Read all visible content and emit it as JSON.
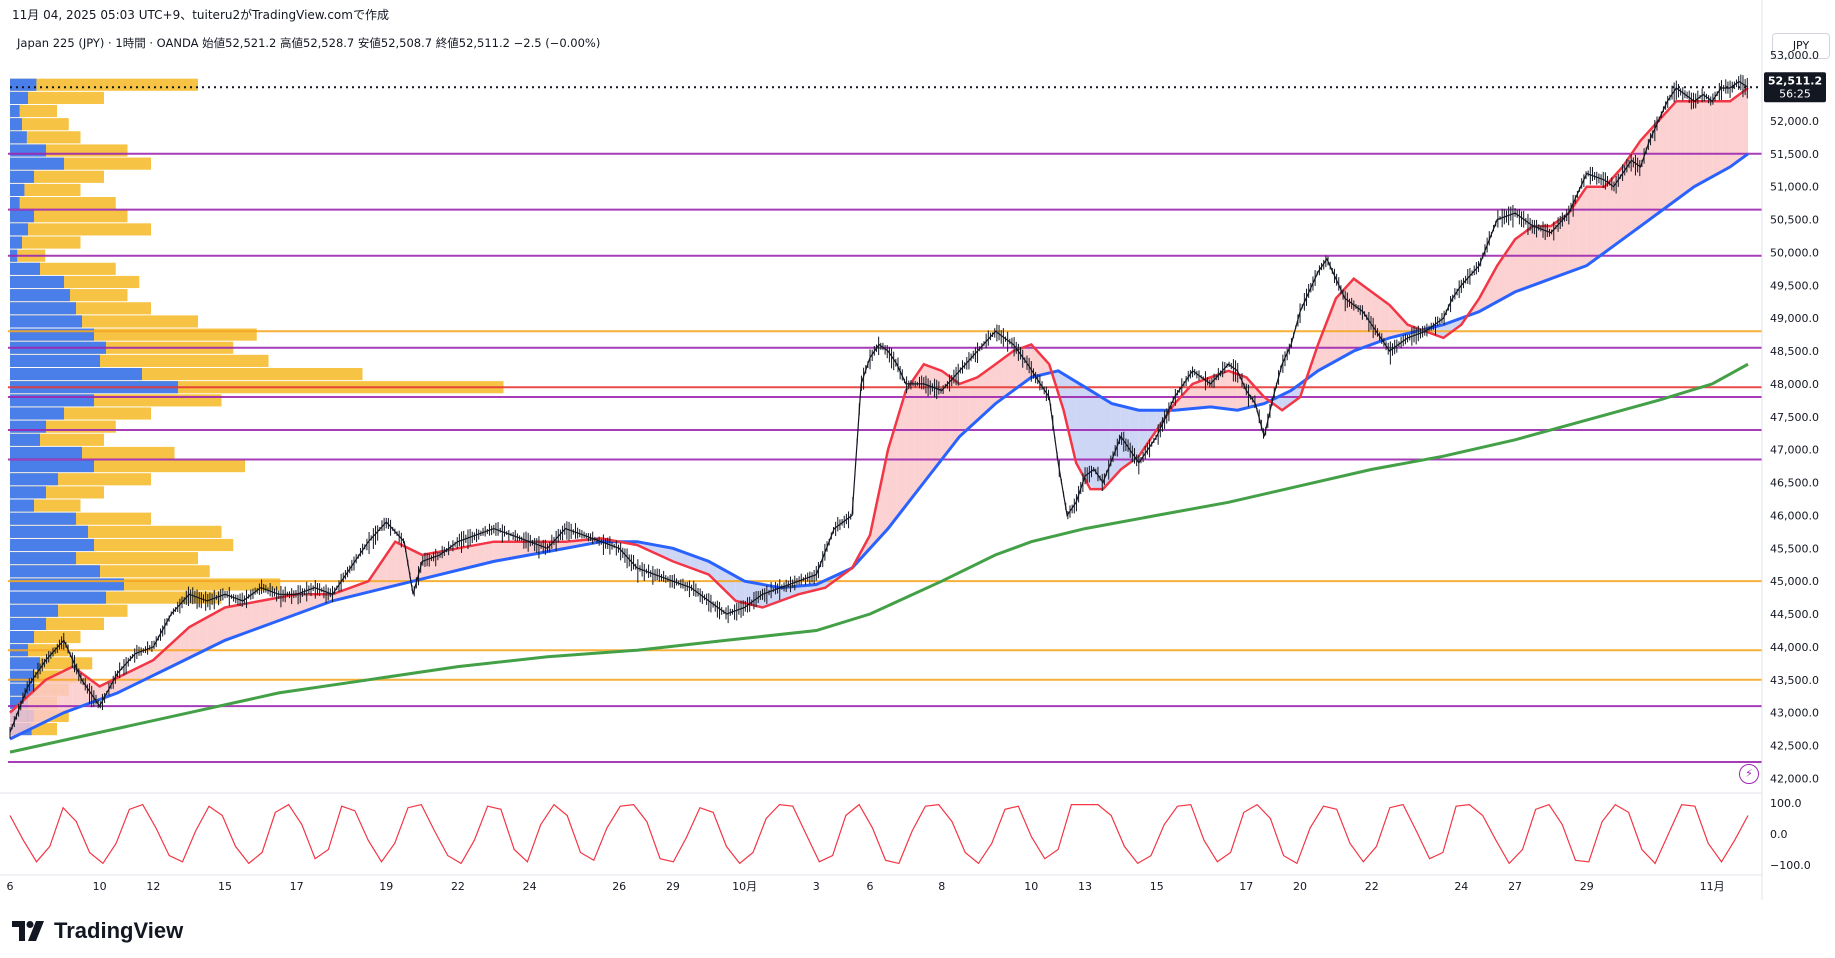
{
  "header": {
    "snapshot_line": "11月 04, 2025 05:03 UTC+9、tuiteru2がTradingView.comで作成",
    "legend_line": "Japan 225 (JPY) · 1時間 · OANDA  始値52,521.2  高値52,528.7  安値52,508.7  終値52,511.2  −2.5 (−0.00%)",
    "currency_button": "JPY"
  },
  "brand": {
    "name": "TradingView"
  },
  "colors": {
    "fast_ma": "#f23645",
    "mid_ma": "#2962ff",
    "slow_ma": "#43a047",
    "bull_fill": "#fbc9c9",
    "bear_fill": "#c5cff5",
    "vp_up": "#f6c344",
    "vp_down": "#4a7ee8",
    "level_purple": "#9c27b0",
    "level_orange": "#f5a623",
    "level_red": "#e53935",
    "oscillator": "#f23645",
    "candles": "#131722"
  },
  "price_label": {
    "price": "52,511.2",
    "countdown": "56:25",
    "value": 52511.2
  },
  "chart_data": [
    {
      "type": "line",
      "title": "",
      "xlabel": "",
      "ylabel": "",
      "x_ticks": [
        "6",
        "10",
        "12",
        "15",
        "17",
        "19",
        "22",
        "24",
        "26",
        "29",
        "10月",
        "3",
        "6",
        "8",
        "10",
        "13",
        "15",
        "17",
        "20",
        "22",
        "24",
        "27",
        "29",
        "11月"
      ],
      "x_tick_positions": [
        0.0,
        5.0,
        8.0,
        12.0,
        16.0,
        21.0,
        25.0,
        29.0,
        34.0,
        37.0,
        41.0,
        45.0,
        48.0,
        52.0,
        57.0,
        60.0,
        64.0,
        69.0,
        72.0,
        76.0,
        81.0,
        84.0,
        88.0,
        95.0
      ],
      "y_ticks": [
        "53,000.0",
        "52,500.0",
        "52,000.0",
        "51,500.0",
        "51,000.0",
        "50,500.0",
        "50,000.0",
        "49,500.0",
        "49,000.0",
        "48,500.0",
        "48,000.0",
        "47,500.0",
        "47,000.0",
        "46,500.0",
        "46,000.0",
        "45,500.0",
        "45,000.0",
        "44,500.0",
        "44,000.0",
        "43,500.0",
        "43,000.0",
        "42,500.0",
        "42,000.0"
      ],
      "ylim": [
        41900,
        53200
      ],
      "grid": false,
      "series": [
        {
          "role": "price",
          "x": [
            0.0,
            1.0,
            2.0,
            3.0,
            4.0,
            5.0,
            6.0,
            7.0,
            8.0,
            9.0,
            10.0,
            11.0,
            12.0,
            13.0,
            14.0,
            15.0,
            16.0,
            17.0,
            18.0,
            19.0,
            20.0,
            21.0,
            22.0,
            22.5,
            23.0,
            24.0,
            25.0,
            26.0,
            27.0,
            28.0,
            29.0,
            30.0,
            31.0,
            32.0,
            33.0,
            34.0,
            35.0,
            36.0,
            37.0,
            38.0,
            39.0,
            40.0,
            41.0,
            42.0,
            43.0,
            44.0,
            45.0,
            46.0,
            47.0,
            47.5,
            48.0,
            48.5,
            49.0,
            49.5,
            50.0,
            51.0,
            52.0,
            53.0,
            54.0,
            55.0,
            56.0,
            56.8,
            57.5,
            58.0,
            58.5,
            59.0,
            59.5,
            60.0,
            60.5,
            61.0,
            62.0,
            62.5,
            63.0,
            63.5,
            64.0,
            65.0,
            66.0,
            67.0,
            68.0,
            68.5,
            69.0,
            69.5,
            70.0,
            70.5,
            71.0,
            71.5,
            72.0,
            72.5,
            73.0,
            73.5,
            74.0,
            74.5,
            75.0,
            75.5,
            76.0,
            76.5,
            77.0,
            78.0,
            79.0,
            80.0,
            80.5,
            81.0,
            82.0,
            83.0,
            84.0,
            85.0,
            86.0,
            87.0,
            88.0,
            89.0,
            89.5,
            90.0,
            90.5,
            91.0,
            91.5,
            92.0,
            92.5,
            93.0,
            93.5,
            94.0,
            94.5,
            95.0,
            95.5,
            96.0,
            96.5,
            97.0
          ],
          "values": [
            42700,
            43400,
            43800,
            44100,
            43500,
            43100,
            43600,
            43900,
            44000,
            44500,
            44800,
            44700,
            44800,
            44700,
            44900,
            44800,
            44800,
            44900,
            44800,
            45200,
            45600,
            45900,
            45600,
            44800,
            45300,
            45400,
            45600,
            45700,
            45800,
            45700,
            45600,
            45500,
            45800,
            45700,
            45600,
            45500,
            45200,
            45100,
            45000,
            44900,
            44700,
            44500,
            44600,
            44800,
            44900,
            45000,
            45100,
            45800,
            46000,
            48000,
            48400,
            48600,
            48500,
            48300,
            48000,
            48000,
            47900,
            48200,
            48500,
            48800,
            48600,
            48300,
            48000,
            47800,
            46800,
            46000,
            46200,
            46600,
            46700,
            46500,
            47200,
            47000,
            46800,
            47000,
            47200,
            47800,
            48200,
            48000,
            48300,
            48200,
            47900,
            47700,
            47200,
            47800,
            48300,
            48600,
            49100,
            49400,
            49700,
            49900,
            49600,
            49300,
            49200,
            49100,
            48900,
            48700,
            48500,
            48700,
            48800,
            49000,
            49300,
            49500,
            49800,
            50500,
            50600,
            50400,
            50300,
            50600,
            51200,
            51100,
            51000,
            51200,
            51400,
            51300,
            51700,
            52000,
            52300,
            52500,
            52400,
            52300,
            52400,
            52300,
            52500,
            52500,
            52600,
            52511.2
          ]
        },
        {
          "role": "fast_ma",
          "x": [
            0.0,
            2.0,
            3.5,
            5.0,
            6.5,
            8.0,
            10.0,
            12.0,
            14.0,
            16.0,
            18.0,
            20.0,
            21.5,
            23.0,
            25.0,
            27.0,
            29.0,
            31.0,
            33.0,
            35.0,
            37.0,
            39.0,
            40.5,
            42.0,
            44.0,
            45.5,
            47.0,
            48.0,
            49.0,
            50.0,
            51.0,
            52.0,
            53.0,
            54.0,
            55.0,
            56.0,
            57.0,
            58.0,
            58.8,
            59.5,
            60.3,
            61.0,
            62.0,
            63.0,
            64.0,
            65.0,
            66.0,
            67.0,
            68.0,
            69.0,
            70.0,
            71.0,
            72.0,
            73.0,
            74.0,
            75.0,
            76.0,
            77.0,
            78.0,
            79.0,
            80.0,
            81.0,
            82.0,
            83.0,
            84.0,
            85.0,
            86.0,
            87.0,
            88.0,
            89.0,
            90.0,
            91.0,
            92.0,
            93.0,
            94.0,
            95.0,
            96.0,
            97.0
          ],
          "values": [
            43000,
            43500,
            43700,
            43400,
            43600,
            43800,
            44300,
            44600,
            44700,
            44800,
            44800,
            45000,
            45600,
            45400,
            45500,
            45600,
            45600,
            45600,
            45650,
            45550,
            45300,
            45100,
            44700,
            44600,
            44800,
            44900,
            45200,
            45700,
            47000,
            47900,
            48300,
            48200,
            48000,
            48100,
            48300,
            48500,
            48600,
            48300,
            47600,
            46800,
            46400,
            46400,
            46700,
            46900,
            47300,
            47700,
            48000,
            48100,
            48200,
            48100,
            47800,
            47600,
            47800,
            48600,
            49300,
            49600,
            49400,
            49200,
            48900,
            48800,
            48700,
            48900,
            49300,
            49800,
            50200,
            50400,
            50400,
            50600,
            51000,
            51000,
            51300,
            51700,
            52000,
            52300,
            52300,
            52300,
            52300,
            52500
          ]
        },
        {
          "role": "mid_ma",
          "x": [
            0.0,
            3.0,
            6.0,
            9.0,
            12.0,
            15.0,
            18.0,
            21.0,
            24.0,
            27.0,
            30.0,
            33.0,
            35.0,
            37.0,
            39.0,
            41.0,
            43.0,
            45.0,
            47.0,
            49.0,
            51.0,
            53.0,
            55.0,
            57.0,
            58.5,
            60.0,
            61.5,
            63.0,
            65.0,
            67.0,
            68.5,
            70.0,
            71.5,
            73.0,
            75.0,
            77.0,
            78.5,
            80.0,
            82.0,
            84.0,
            86.0,
            88.0,
            90.0,
            92.0,
            94.0,
            96.0,
            97.0
          ],
          "values": [
            42600,
            43000,
            43300,
            43700,
            44100,
            44400,
            44700,
            44900,
            45100,
            45300,
            45450,
            45600,
            45600,
            45500,
            45300,
            45000,
            44900,
            44950,
            45200,
            45800,
            46500,
            47200,
            47700,
            48100,
            48200,
            47950,
            47700,
            47600,
            47600,
            47650,
            47600,
            47700,
            47900,
            48200,
            48500,
            48700,
            48800,
            48900,
            49100,
            49400,
            49600,
            49800,
            50200,
            50600,
            51000,
            51300,
            51500
          ]
        },
        {
          "role": "slow_ma",
          "x": [
            0.0,
            5.0,
            10.0,
            15.0,
            20.0,
            25.0,
            30.0,
            35.0,
            40.0,
            45.0,
            48.0,
            52.0,
            55.0,
            57.0,
            60.0,
            64.0,
            68.0,
            72.0,
            76.0,
            80.0,
            84.0,
            88.0,
            92.0,
            95.0,
            97.0
          ],
          "values": [
            42400,
            42700,
            43000,
            43300,
            43500,
            43700,
            43850,
            43950,
            44100,
            44250,
            44500,
            45000,
            45400,
            45600,
            45800,
            46000,
            46200,
            46450,
            46700,
            46900,
            47150,
            47450,
            47750,
            48000,
            48300
          ]
        }
      ],
      "levels": [
        {
          "price": 51500,
          "kind": "purple"
        },
        {
          "price": 50650,
          "kind": "purple"
        },
        {
          "price": 49950,
          "kind": "purple"
        },
        {
          "price": 48800,
          "kind": "orange"
        },
        {
          "price": 48550,
          "kind": "purple"
        },
        {
          "price": 47950,
          "kind": "red"
        },
        {
          "price": 47800,
          "kind": "purple"
        },
        {
          "price": 47300,
          "kind": "purple"
        },
        {
          "price": 46850,
          "kind": "purple"
        },
        {
          "price": 45000,
          "kind": "orange"
        },
        {
          "price": 43950,
          "kind": "orange"
        },
        {
          "price": 43500,
          "kind": "orange"
        },
        {
          "price": 43100,
          "kind": "purple"
        },
        {
          "price": 42250,
          "kind": "purple"
        }
      ],
      "volume_profile": {
        "price": [
          52550,
          52350,
          52150,
          51950,
          51750,
          51550,
          51350,
          51150,
          50950,
          50750,
          50550,
          50350,
          50150,
          49950,
          49750,
          49550,
          49350,
          49150,
          48950,
          48750,
          48550,
          48350,
          48150,
          47950,
          47750,
          47550,
          47350,
          47150,
          46950,
          46750,
          46550,
          46350,
          46150,
          45950,
          45750,
          45550,
          45350,
          45150,
          44950,
          44750,
          44550,
          44350,
          44150,
          43950,
          43750,
          43550,
          43350,
          43150,
          42950,
          42750
        ],
        "down": [
          22,
          15,
          8,
          10,
          14,
          30,
          45,
          20,
          12,
          8,
          20,
          15,
          10,
          6,
          25,
          45,
          50,
          55,
          60,
          70,
          80,
          75,
          110,
          140,
          70,
          45,
          30,
          25,
          60,
          70,
          40,
          30,
          20,
          55,
          65,
          70,
          55,
          75,
          95,
          80,
          40,
          30,
          20,
          15,
          25,
          20,
          20,
          15,
          20,
          18
        ],
        "up": [
          80,
          40,
          20,
          25,
          30,
          50,
          60,
          40,
          30,
          45,
          50,
          60,
          30,
          15,
          45,
          55,
          50,
          60,
          80,
          105,
          95,
          110,
          150,
          210,
          90,
          60,
          45,
          40,
          70,
          100,
          60,
          40,
          30,
          60,
          90,
          95,
          80,
          85,
          115,
          90,
          50,
          40,
          30,
          25,
          35,
          30,
          25,
          20,
          25,
          20
        ]
      }
    },
    {
      "type": "line",
      "title": "",
      "y_ticks": [
        "100.0",
        "0.0",
        "−100.0"
      ],
      "ylim": [
        -110,
        110
      ],
      "series": [
        {
          "role": "oscillator",
          "values": [
            60,
            -20,
            -90,
            -40,
            85,
            40,
            -60,
            -95,
            -30,
            80,
            95,
            20,
            -70,
            -90,
            10,
            90,
            60,
            -40,
            -95,
            -60,
            70,
            95,
            30,
            -80,
            -50,
            90,
            75,
            -20,
            -90,
            -30,
            85,
            95,
            10,
            -70,
            -95,
            -20,
            90,
            80,
            -50,
            -90,
            30,
            95,
            60,
            -60,
            -85,
            20,
            90,
            95,
            40,
            -80,
            -90,
            -10,
            85,
            70,
            -40,
            -95,
            -60,
            50,
            95,
            90,
            0,
            -90,
            -70,
            60,
            95,
            20,
            -85,
            -95,
            10,
            90,
            95,
            40,
            -60,
            -95,
            -30,
            80,
            90,
            -10,
            -80,
            -50,
            95,
            95,
            95,
            60,
            -40,
            -95,
            -70,
            30,
            90,
            95,
            -20,
            -90,
            -60,
            70,
            95,
            50,
            -70,
            -95,
            20,
            90,
            80,
            -30,
            -90,
            -40,
            85,
            95,
            10,
            -80,
            -60,
            90,
            95,
            60,
            -20,
            -95,
            -50,
            80,
            95,
            30,
            -85,
            -90,
            40,
            95,
            70,
            -50,
            -95,
            0,
            95,
            90,
            -30,
            -90,
            -20,
            60
          ]
        }
      ]
    }
  ]
}
